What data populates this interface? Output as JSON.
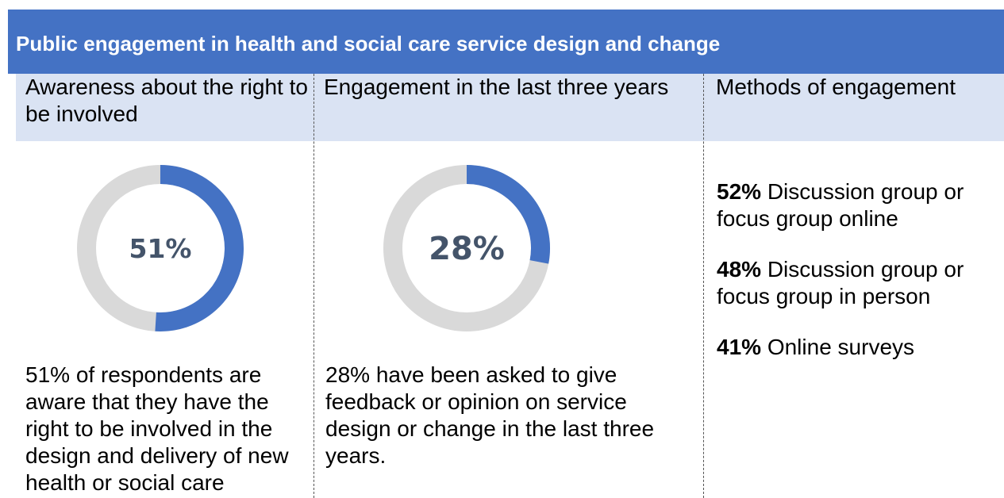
{
  "header": {
    "title": "Public engagement in health and social care service design and change"
  },
  "columns": [
    {
      "heading": "Awareness about the right to be involved"
    },
    {
      "heading": "Engagement in the last three years"
    },
    {
      "heading": "Methods of engagement"
    }
  ],
  "awareness": {
    "value_label": "51%",
    "fraction": 0.51,
    "description": "51% of respondents are aware that they have the right to be involved in the design and delivery of new health or social care"
  },
  "engagement": {
    "value_label": "28%",
    "fraction": 0.28,
    "description": "28% have been asked to give feedback or opinion on service design or change in the last three years."
  },
  "methods": [
    {
      "pct": "52%",
      "label": "Discussion group or focus group online"
    },
    {
      "pct": "48%",
      "label": "Discussion group or focus group in person"
    },
    {
      "pct": "41%",
      "label": "Online surveys"
    }
  ],
  "colors": {
    "header_bg": "#4472c4",
    "subheader_bg": "#dae3f3",
    "donut_fill": "#4472c4",
    "donut_track": "#d9d9d9",
    "value_text": "#44546a"
  }
}
